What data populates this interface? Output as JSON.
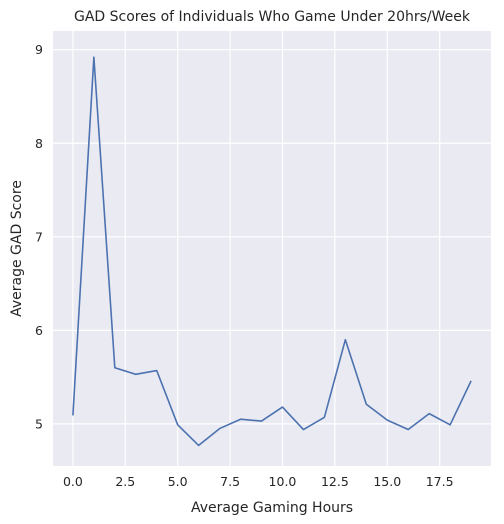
{
  "chart_data": {
    "type": "line",
    "title": "GAD Scores of Individuals Who Game Under 20hrs/Week",
    "xlabel": "Average Gaming Hours",
    "ylabel": "Average GAD Score",
    "xlim": [
      -0.95,
      19.95
    ],
    "ylim": [
      4.55,
      9.2
    ],
    "xticks": [
      0.0,
      2.5,
      5.0,
      7.5,
      10.0,
      12.5,
      15.0,
      17.5
    ],
    "xtick_labels": [
      "0.0",
      "2.5",
      "5.0",
      "7.5",
      "10.0",
      "12.5",
      "15.0",
      "17.5"
    ],
    "yticks": [
      5,
      6,
      7,
      8,
      9
    ],
    "ytick_labels": [
      "5",
      "6",
      "7",
      "8",
      "9"
    ],
    "grid": true,
    "background": "#eaeaf2",
    "line_color": "#4c72b0",
    "series": [
      {
        "x": [
          0,
          1,
          2,
          3,
          4,
          5,
          6,
          7,
          8,
          9,
          10,
          11,
          12,
          13,
          14,
          15,
          16,
          17,
          18,
          19
        ],
        "values": [
          5.09,
          8.92,
          5.6,
          5.53,
          5.57,
          4.99,
          4.77,
          4.95,
          5.05,
          5.03,
          5.18,
          4.94,
          5.07,
          5.9,
          5.21,
          5.04,
          4.94,
          5.11,
          4.99,
          5.46
        ]
      }
    ]
  }
}
